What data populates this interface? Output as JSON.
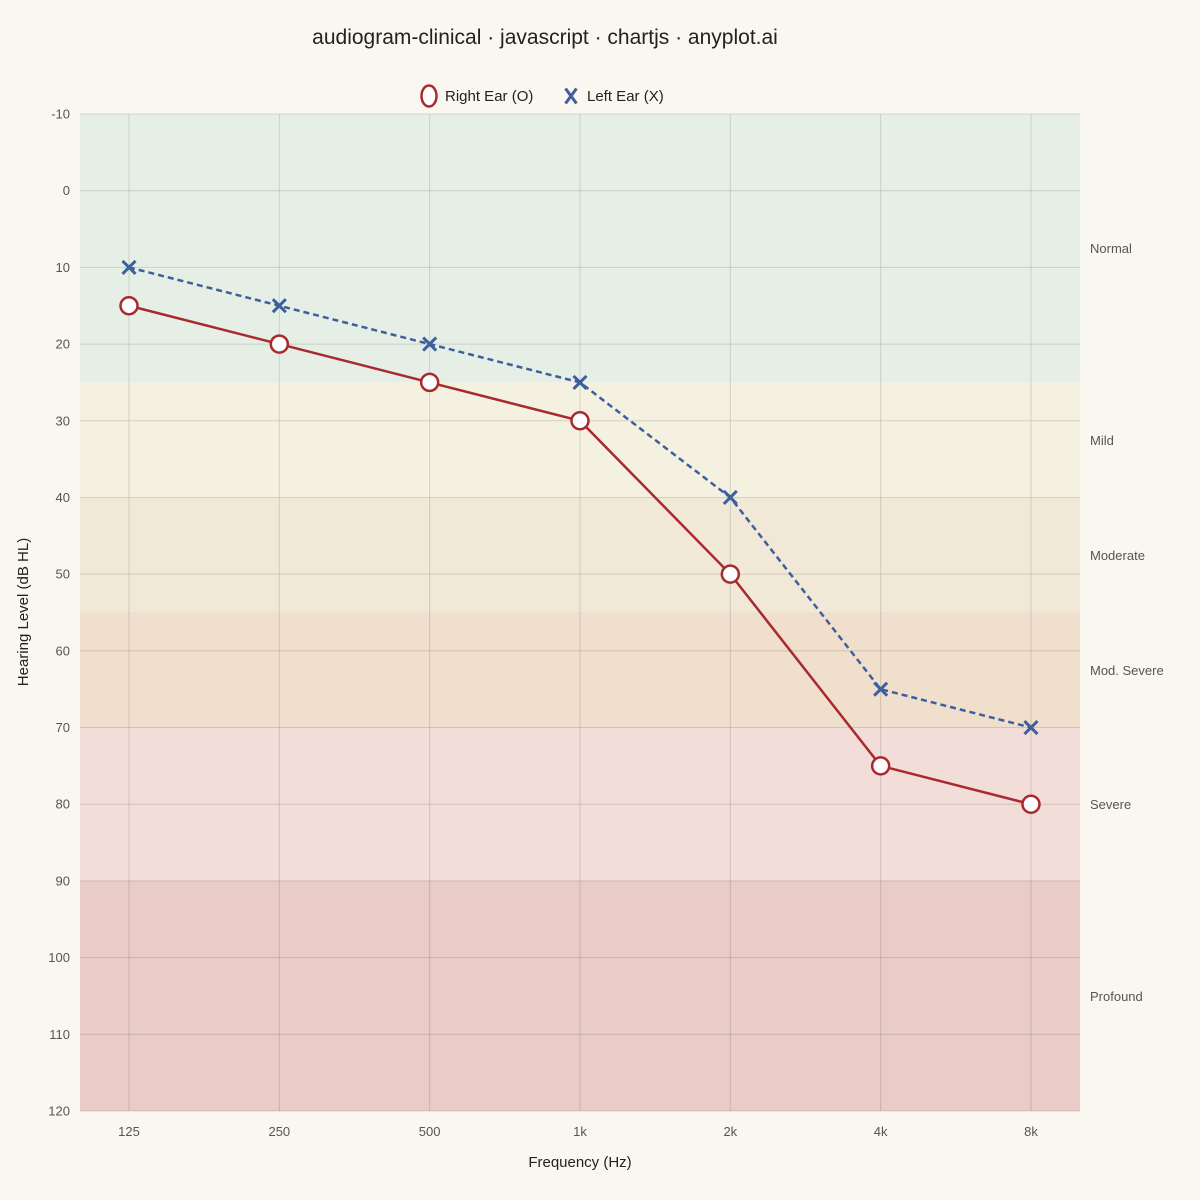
{
  "chart_data": {
    "type": "line",
    "title": "audiogram-clinical · javascript · chartjs · anyplot.ai",
    "xlabel": "Frequency (Hz)",
    "ylabel": "Hearing Level (dB HL)",
    "categories": [
      "125",
      "250",
      "500",
      "1k",
      "2k",
      "4k",
      "8k"
    ],
    "ylim": [
      -10,
      120
    ],
    "y_inverted": true,
    "y_ticks": [
      -10,
      0,
      10,
      20,
      30,
      40,
      50,
      60,
      70,
      80,
      90,
      100,
      110,
      120
    ],
    "grid": true,
    "legend_position": "top-center",
    "series": [
      {
        "name": "Right Ear (O)",
        "values": [
          15,
          20,
          25,
          30,
          50,
          75,
          80
        ],
        "color": "#a8292e",
        "marker": "circle",
        "line_style": "solid"
      },
      {
        "name": "Left Ear (X)",
        "values": [
          10,
          15,
          20,
          25,
          40,
          65,
          70
        ],
        "color": "#3d5f9c",
        "marker": "x",
        "line_style": "dashed"
      }
    ],
    "bands": [
      {
        "label": "Normal",
        "from": -10,
        "to": 25,
        "color": "#e6efe6"
      },
      {
        "label": "Mild",
        "from": 25,
        "to": 40,
        "color": "#f5f1e0"
      },
      {
        "label": "Moderate",
        "from": 40,
        "to": 55,
        "color": "#f1e8d8"
      },
      {
        "label": "Mod. Severe",
        "from": 55,
        "to": 70,
        "color": "#efdfcc"
      },
      {
        "label": "Severe",
        "from": 70,
        "to": 90,
        "color": "#f2ddd8"
      },
      {
        "label": "Profound",
        "from": 90,
        "to": 120,
        "color": "#e9cbc8"
      }
    ]
  }
}
